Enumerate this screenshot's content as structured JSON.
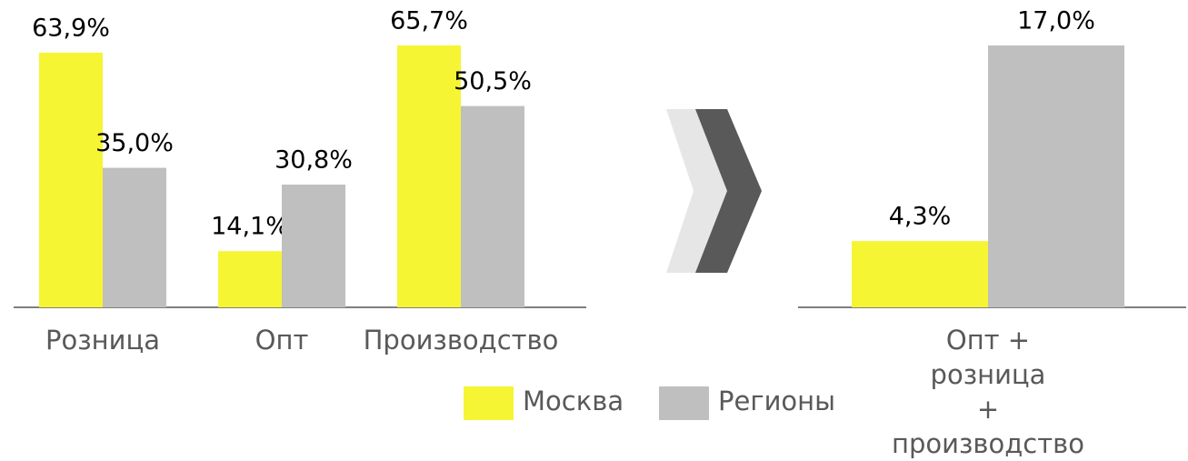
{
  "chart_data": [
    {
      "type": "bar",
      "categories": [
        "Розница",
        "Опт",
        "Производство"
      ],
      "series": [
        {
          "name": "Москва",
          "color": "#f5f533",
          "values": [
            63.9,
            14.1,
            65.7
          ],
          "value_labels": [
            "63,9%",
            "14,1%",
            "65,7%"
          ]
        },
        {
          "name": "Регионы",
          "color": "#bfbfbf",
          "values": [
            35.0,
            30.8,
            50.5
          ],
          "value_labels": [
            "35,0%",
            "30,8%",
            "50,5%"
          ]
        }
      ]
    },
    {
      "type": "bar",
      "categories": [
        "Опт + розница\n+ производство"
      ],
      "series": [
        {
          "color": "#f5f533",
          "values": [
            4.3
          ],
          "value_labels": [
            "4,3%"
          ]
        },
        {
          "color": "#bfbfbf",
          "values": [
            17.0
          ],
          "value_labels": [
            "17,0%"
          ]
        }
      ]
    }
  ]
}
